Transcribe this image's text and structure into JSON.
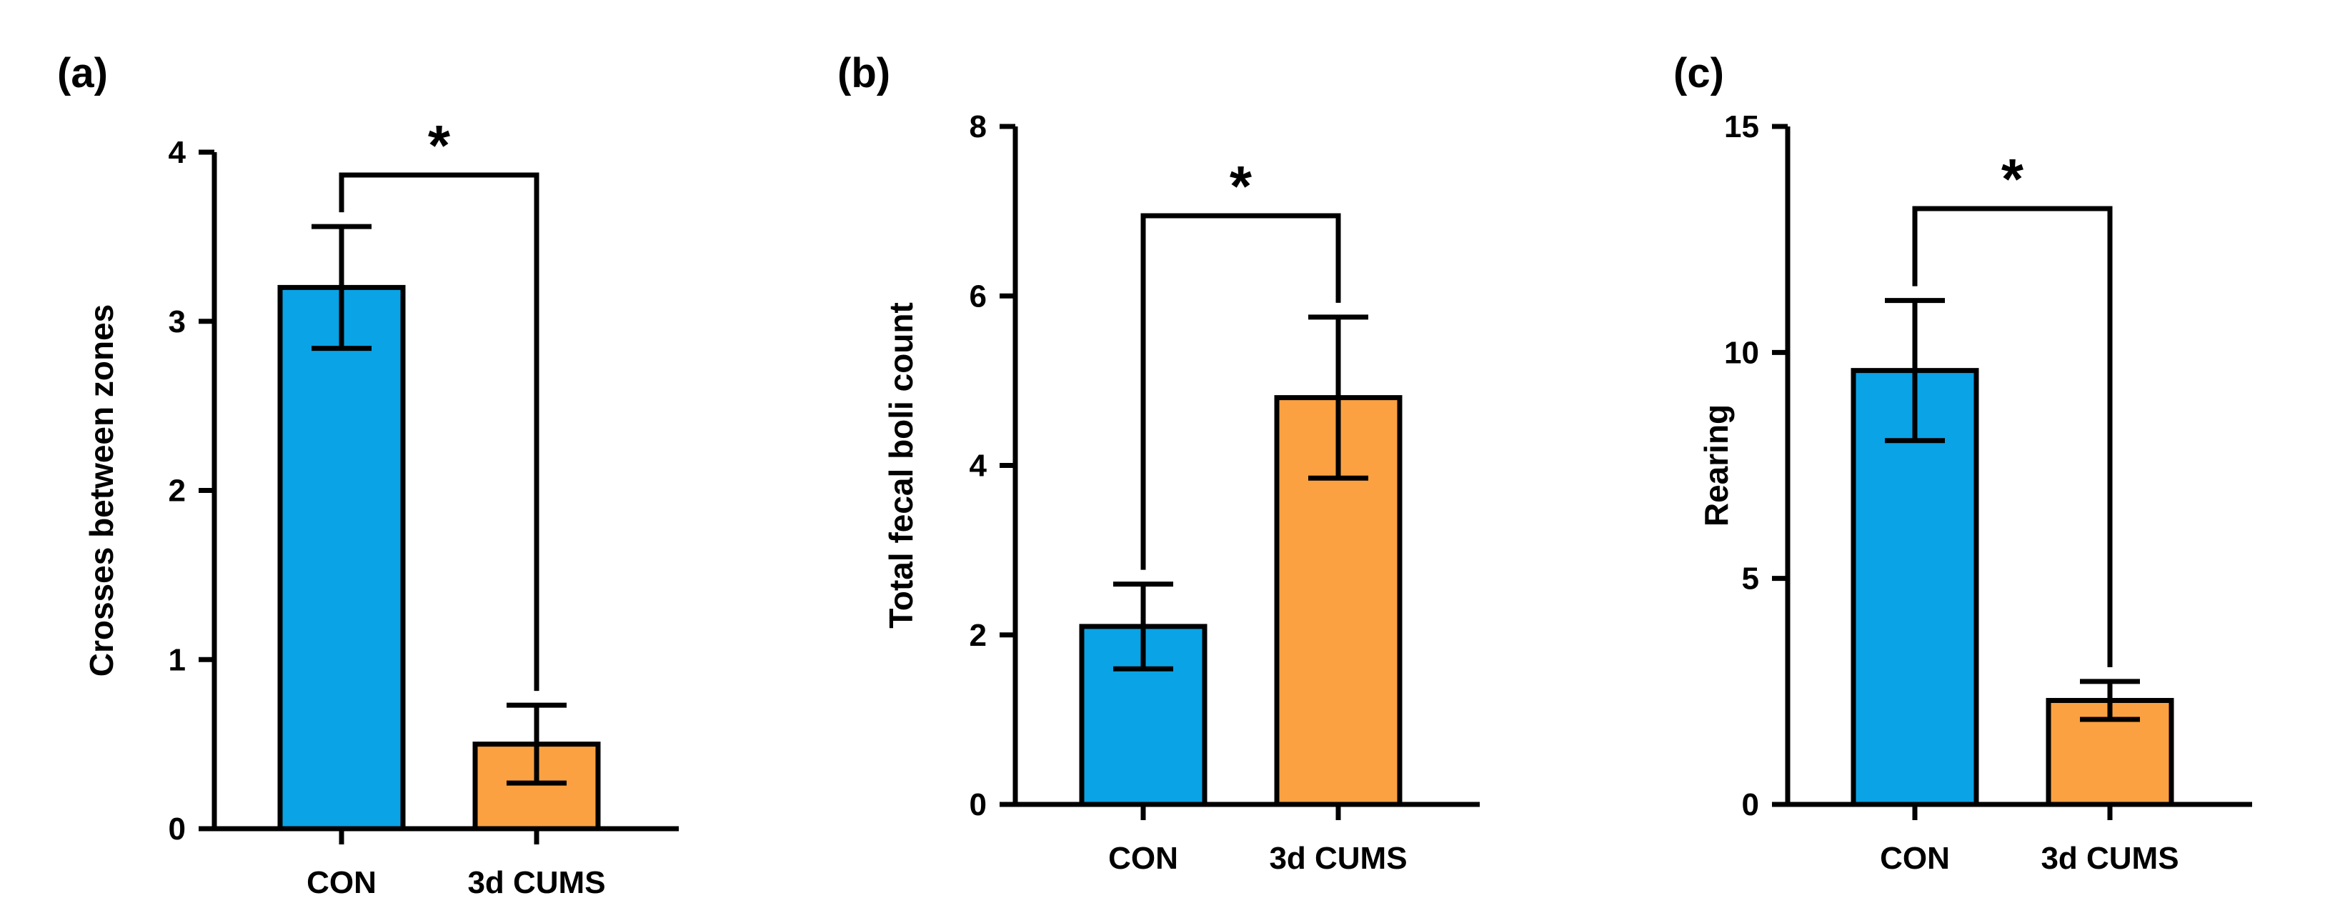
{
  "colors": {
    "con": "#0aa3e6",
    "cums": "#fba141",
    "stroke": "#000000"
  },
  "chart_data": [
    {
      "panel": "(a)",
      "type": "bar",
      "categories": [
        "CON",
        "3d CUMS"
      ],
      "values": [
        3.2,
        0.5
      ],
      "errors": [
        0.36,
        0.23
      ],
      "ylabel": "Crosses between zones",
      "xlabel": "",
      "ylim": [
        0,
        4
      ],
      "yticks": [
        0,
        1,
        2,
        3,
        4
      ],
      "significance": "*",
      "grid": false
    },
    {
      "panel": "(b)",
      "type": "bar",
      "categories": [
        "CON",
        "3d CUMS"
      ],
      "values": [
        2.1,
        4.8
      ],
      "errors": [
        0.5,
        0.95
      ],
      "ylabel": "Total fecal boli count",
      "xlabel": "",
      "ylim": [
        0,
        8
      ],
      "yticks": [
        0,
        2,
        4,
        6,
        8
      ],
      "significance": "*",
      "grid": false
    },
    {
      "panel": "(c)",
      "type": "bar",
      "categories": [
        "CON",
        "3d CUMS"
      ],
      "values": [
        9.6,
        2.3
      ],
      "errors": [
        1.55,
        0.42
      ],
      "ylabel": "Rearing",
      "xlabel": "",
      "ylim": [
        0,
        15
      ],
      "yticks": [
        0,
        5,
        10,
        15
      ],
      "significance": "*",
      "grid": false
    }
  ]
}
